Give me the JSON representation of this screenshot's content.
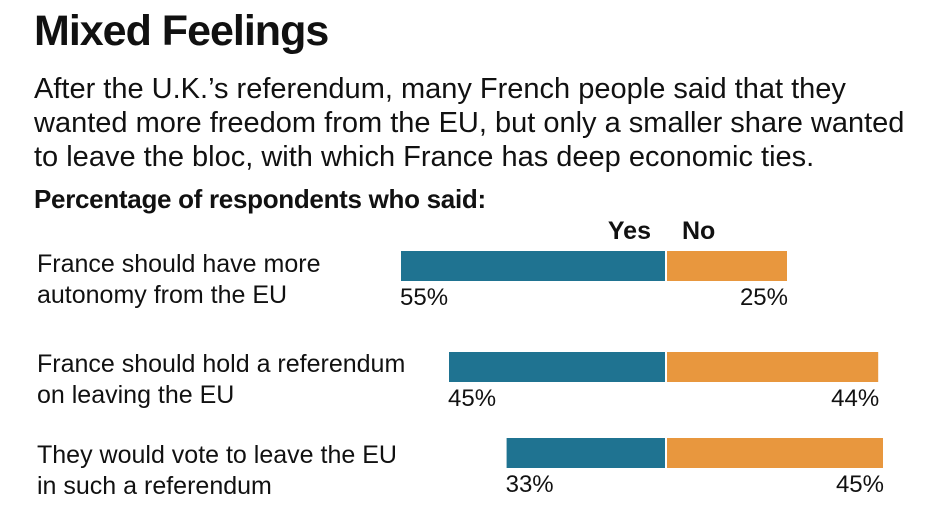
{
  "title": "Mixed Feelings",
  "subtitle": "After the U.K.’s referendum, many French people said that they wanted more freedom from the EU, but only a smaller share wanted to leave the bloc, with which France has deep economic ties.",
  "subheading": "Percentage of respondents who said:",
  "colors": {
    "yes": "#1f7391",
    "no": "#e8973e"
  },
  "chart_data": {
    "type": "bar",
    "orientation": "horizontal-diverging",
    "title": "Mixed Feelings",
    "categories": [
      "France should have more autonomy from the EU",
      "France should hold a referendum on leaving the EU",
      "They would vote to leave the EU in such a referendum"
    ],
    "series": [
      {
        "name": "Yes",
        "values": [
          55,
          45,
          33
        ],
        "color": "#1f7391"
      },
      {
        "name": "No",
        "values": [
          25,
          44,
          45
        ],
        "color": "#e8973e"
      }
    ],
    "value_labels": [
      [
        "55%",
        "25%"
      ],
      [
        "45%",
        "44%"
      ],
      [
        "33%",
        "45%"
      ]
    ],
    "units": "%",
    "legend": "top, above bars",
    "grid": false
  }
}
